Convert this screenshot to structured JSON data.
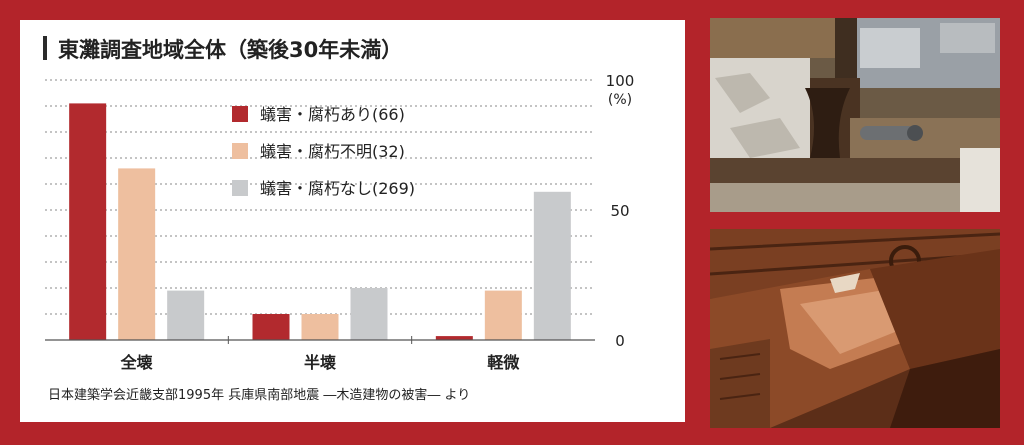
{
  "title": "東灘調査地域全体（築後30年未満）",
  "footer": "日本建築学会近畿支部1995年 兵庫県南部地震 ―木造建物の被害― より",
  "chart_data": {
    "type": "bar",
    "title": "東灘調査地域全体（築後30年未満）",
    "categories": [
      "全壊",
      "半壊",
      "軽微"
    ],
    "series": [
      {
        "name": "蟻害・腐朽あり(66)",
        "color": "#b22a2e",
        "values": [
          91,
          10,
          1.5
        ]
      },
      {
        "name": "蟻害・腐朽不明(32)",
        "color": "#eebf9f",
        "values": [
          66,
          10,
          19
        ]
      },
      {
        "name": "蟻害・腐朽なし(269)",
        "color": "#c8cacc",
        "values": [
          19,
          20,
          57
        ]
      }
    ],
    "y_ticks": [
      "100",
      "50",
      "0"
    ],
    "y_unit": "(%)",
    "ylim": [
      0,
      100
    ],
    "legend_position": "top-center",
    "grid": true
  },
  "colors": {
    "frame": "#b3242a",
    "grid": "#8a8a8a"
  }
}
